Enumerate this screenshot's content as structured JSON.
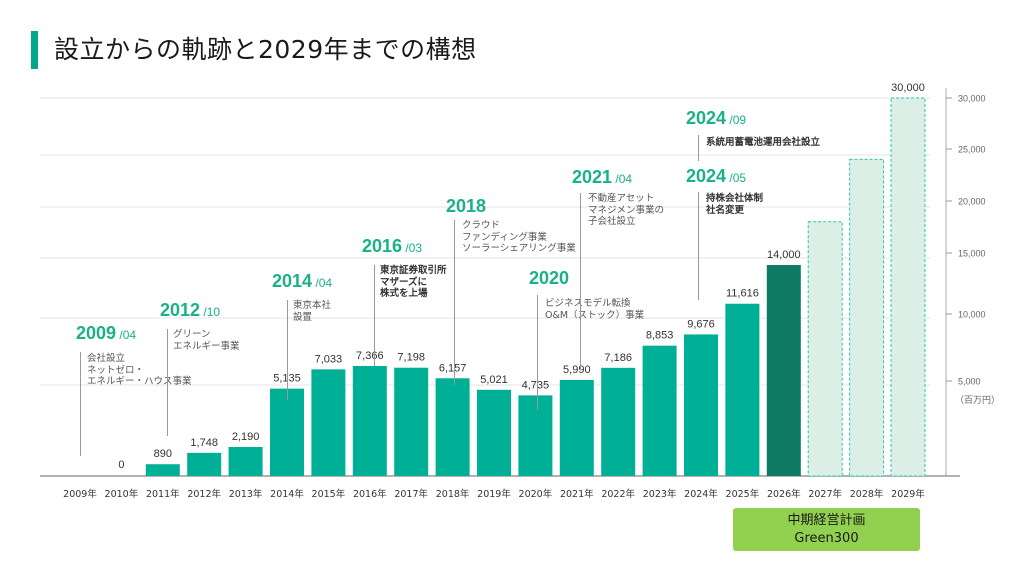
{
  "title": "設立からの軌跡と2029年までの構想",
  "plan_box": {
    "line1": "中期経営計画",
    "line2": "Green300"
  },
  "colors": {
    "accent": "#00a88a",
    "bar_actual": "#00b096",
    "bar_current": "#0f7a63",
    "bar_plan_fill": "#dcefe6",
    "bar_plan_border": "#2ec4ae",
    "plan_box": "#92d050",
    "annotation_year": "#19b188"
  },
  "chart_data": {
    "type": "bar",
    "title": "設立からの軌跡と2029年までの構想",
    "xlabel": "",
    "ylabel": "（百万円）",
    "unit_label": "（百万円）",
    "categories": [
      "2009年",
      "2010年",
      "2011年",
      "2012年",
      "2013年",
      "2014年",
      "2015年",
      "2016年",
      "2017年",
      "2018年",
      "2019年",
      "2020年",
      "2021年",
      "2022年",
      "2023年",
      "2024年",
      "2025年",
      "2026年",
      "2027年",
      "2028年",
      "2029年"
    ],
    "values": [
      null,
      0,
      890,
      1748,
      2190,
      5135,
      7033,
      7366,
      7198,
      6157,
      5021,
      4735,
      5990,
      7186,
      8853,
      9676,
      11616,
      14000,
      18000,
      24000,
      30000
    ],
    "value_labels": [
      "",
      "0",
      "890",
      "1,748",
      "2,190",
      "5,135",
      "7,033",
      "7,366",
      "7,198",
      "6,157",
      "5,021",
      "4,735",
      "5,990",
      "7,186",
      "8,853",
      "9,676",
      "11,616",
      "14,000",
      "",
      "",
      "30,000"
    ],
    "bar_styles": [
      "none",
      "actual",
      "actual",
      "actual",
      "actual",
      "actual",
      "actual",
      "actual",
      "actual",
      "actual",
      "actual",
      "actual",
      "actual",
      "actual",
      "actual",
      "actual",
      "actual",
      "current",
      "plan",
      "plan",
      "plan"
    ],
    "y_axis": {
      "position": "right",
      "ticks": [
        5000,
        10000,
        15000,
        20000,
        25000,
        30000
      ],
      "tick_labels": [
        "5,000",
        "10,000",
        "15,000",
        "20,000",
        "25,000",
        "30,000"
      ],
      "ylim": [
        0,
        30000
      ]
    },
    "grid": true,
    "annotations": [
      {
        "year": "2009",
        "month": "/04",
        "category_index": 0,
        "text": "会社設立\nネットゼロ・\nエネルギー・ハウス事業",
        "bold": false
      },
      {
        "year": "2012",
        "month": "/10",
        "category_index": 2,
        "text": "グリーン\nエネルギー事業",
        "bold": false
      },
      {
        "year": "2014",
        "month": "/04",
        "category_index": 5,
        "text": "東京本社\n設置",
        "bold": false
      },
      {
        "year": "2016",
        "month": "/03",
        "category_index": 7,
        "text": "東京証券取引所\nマザーズに\n株式を上場",
        "bold": true
      },
      {
        "year": "2018",
        "month": "",
        "category_index": 9,
        "text": "クラウド\nファンディング事業\nソーラーシェアリング事業",
        "bold": false
      },
      {
        "year": "2020",
        "month": "",
        "category_index": 11,
        "text": "ビジネスモデル転換\nO&M（ストック）事業",
        "bold": false
      },
      {
        "year": "2021",
        "month": "/04",
        "category_index": 12,
        "text": "不動産アセット\nマネジメン事業の\n子会社設立",
        "bold": false
      },
      {
        "year": "2024",
        "month": "/05",
        "category_index": 15,
        "text": "持株会社体制\n社名変更",
        "bold": true
      },
      {
        "year": "2024",
        "month": "/09",
        "category_index": 15,
        "text": "系統用蓄電池運用会社設立",
        "bold": true
      }
    ]
  }
}
